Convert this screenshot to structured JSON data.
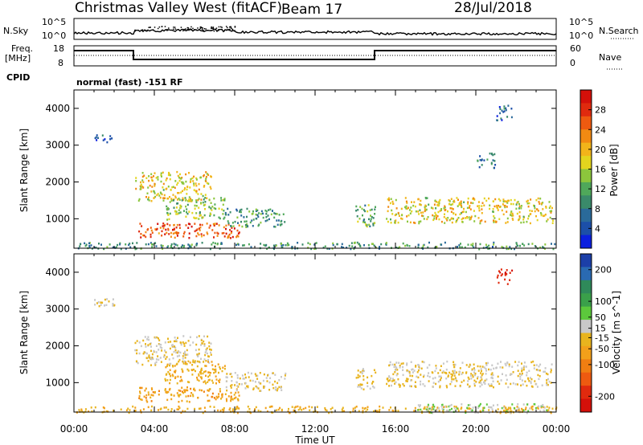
{
  "header": {
    "station": "Christmas Valley West (fitACF)",
    "beam": "Beam 17",
    "date": "28/Jul/2018"
  },
  "noise_panel": {
    "left_label": "N.Sky",
    "right_label": "N.Search",
    "left_ticks": [
      "10^5",
      "10^0"
    ],
    "right_ticks": [
      "10^5",
      "10^0"
    ]
  },
  "freq_panel": {
    "left_label_1": "Freq.",
    "left_label_2": "[MHz]",
    "right_label": "Nave",
    "left_ticks": [
      "18",
      "8"
    ],
    "right_ticks": [
      "60",
      "0"
    ]
  },
  "cpid_panel": {
    "label": "CPID",
    "text": "normal (fast) -151 RF"
  },
  "colors": {
    "power_scale": [
      "#0b1fdf",
      "#1c4fa8",
      "#2a6a9a",
      "#3a8a6a",
      "#4fa85a",
      "#8cc63c",
      "#e3d51e",
      "#f2b41a",
      "#f28a12",
      "#ee5a10",
      "#e02a0e",
      "#d4100a"
    ],
    "velocity_scale": [
      "#1c3fa8",
      "#2a6ab2",
      "#2f8a5a",
      "#3aa04a",
      "#5cc83c",
      "#c8c8c8",
      "#e8b41e",
      "#f2a01a",
      "#f07e12",
      "#ee5a10",
      "#e02a0e",
      "#d4100a"
    ]
  },
  "chart_data": [
    {
      "type": "heatmap",
      "title": "",
      "ylabel": "Slant Range [km]",
      "xlabel": "",
      "x_ticks": [
        "00:00",
        "04:00",
        "08:00",
        "12:00",
        "16:00",
        "20:00",
        "00:00"
      ],
      "y_ticks": [
        1000,
        2000,
        3000,
        4000
      ],
      "ylim": [
        200,
        4500
      ],
      "colorbar": {
        "label": "Power [dB]",
        "ticks": [
          4,
          8,
          12,
          16,
          20,
          24,
          28
        ],
        "range": [
          0,
          32
        ]
      },
      "regions": [
        {
          "t": [
            0.1,
            24
          ],
          "r": [
            200,
            380
          ],
          "value": 10
        },
        {
          "t": [
            1.0,
            2.0
          ],
          "r": [
            3100,
            3300
          ],
          "value": 6
        },
        {
          "t": [
            3.0,
            6.8
          ],
          "r": [
            1500,
            2300
          ],
          "value": 18
        },
        {
          "t": [
            3.2,
            8.2
          ],
          "r": [
            500,
            900
          ],
          "value": 26
        },
        {
          "t": [
            4.5,
            7.5
          ],
          "r": [
            1000,
            1600
          ],
          "value": 14
        },
        {
          "t": [
            7.5,
            10.5
          ],
          "r": [
            800,
            1300
          ],
          "value": 10
        },
        {
          "t": [
            14.0,
            15.0
          ],
          "r": [
            800,
            1400
          ],
          "value": 12
        },
        {
          "t": [
            15.5,
            23.8
          ],
          "r": [
            900,
            1600
          ],
          "value": 18
        },
        {
          "t": [
            21.0,
            21.8
          ],
          "r": [
            3700,
            4100
          ],
          "value": 6
        },
        {
          "t": [
            20.0,
            21.0
          ],
          "r": [
            2400,
            2800
          ],
          "value": 8
        }
      ]
    },
    {
      "type": "heatmap",
      "title": "",
      "ylabel": "Slant Range [km]",
      "xlabel": "Time UT",
      "x_ticks": [
        "00:00",
        "04:00",
        "08:00",
        "12:00",
        "16:00",
        "20:00",
        "00:00"
      ],
      "y_ticks": [
        1000,
        2000,
        3000,
        4000
      ],
      "ylim": [
        200,
        4500
      ],
      "colorbar": {
        "label": "Velocity [m s^-1]",
        "ticks": [
          200,
          100,
          50,
          15,
          -15,
          -50,
          -100,
          -200
        ],
        "range": [
          -250,
          250
        ]
      },
      "regions": [
        {
          "t": [
            0.1,
            24
          ],
          "r": [
            200,
            380
          ],
          "value": -40
        },
        {
          "t": [
            1.0,
            2.0
          ],
          "r": [
            3100,
            3300
          ],
          "value": 0
        },
        {
          "t": [
            3.0,
            6.8
          ],
          "r": [
            1500,
            2300
          ],
          "value": 0
        },
        {
          "t": [
            3.2,
            8.2
          ],
          "r": [
            500,
            900
          ],
          "value": -60
        },
        {
          "t": [
            4.5,
            7.5
          ],
          "r": [
            1000,
            1600
          ],
          "value": -40
        },
        {
          "t": [
            7.5,
            10.5
          ],
          "r": [
            800,
            1300
          ],
          "value": 0
        },
        {
          "t": [
            14.0,
            15.0
          ],
          "r": [
            800,
            1400
          ],
          "value": 0
        },
        {
          "t": [
            15.5,
            23.8
          ],
          "r": [
            900,
            1600
          ],
          "value": 0
        },
        {
          "t": [
            21.0,
            21.8
          ],
          "r": [
            3700,
            4100
          ],
          "value": -200
        },
        {
          "t": [
            17.0,
            23.5
          ],
          "r": [
            200,
            450
          ],
          "value": 40
        }
      ]
    }
  ]
}
